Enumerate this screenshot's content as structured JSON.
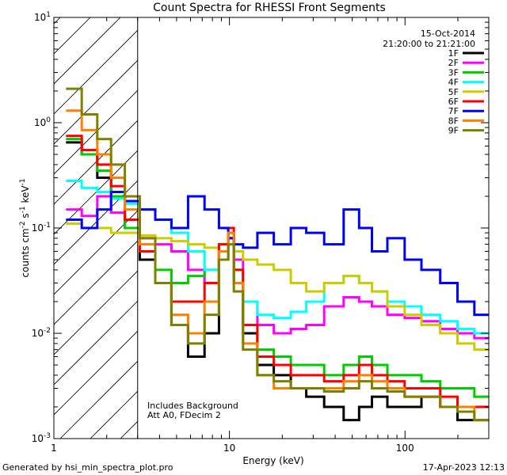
{
  "chart_data": {
    "type": "line",
    "title": "Count Spectra for RHESSI Front Segments",
    "xlabel": "Energy (keV)",
    "ylabel": "counts cm-2 s-1 keV-1",
    "ylabel_parts": {
      "base": "counts cm",
      "e1": "-2",
      "mid1": " s",
      "e2": "-1",
      "mid2": " keV",
      "e3": "-1"
    },
    "xscale": "log",
    "yscale": "log",
    "xlim": [
      1,
      300
    ],
    "ylim": [
      0.001,
      10
    ],
    "x_ticks": [
      {
        "value": 1,
        "label": "1"
      },
      {
        "value": 10,
        "label": "10"
      },
      {
        "value": 100,
        "label": "100"
      }
    ],
    "y_ticks": [
      {
        "value": 0.001,
        "base": "10",
        "exp": "-3"
      },
      {
        "value": 0.01,
        "base": "10",
        "exp": "-2"
      },
      {
        "value": 0.1,
        "base": "10",
        "exp": "-1"
      },
      {
        "value": 1,
        "base": "10",
        "exp": "0"
      },
      {
        "value": 10,
        "base": "10",
        "exp": "1"
      }
    ],
    "shaded_region": {
      "x_from": 1,
      "x_to": 3,
      "pattern": "diagonal-hatch"
    },
    "date": "15-Oct-2014",
    "time_range": "21:20:00 to 21:21:00",
    "annotations": [
      "Includes Background",
      "Att A0, FDecim 2"
    ],
    "footer_left": "Generated by hsi_min_spectra_plot.pro",
    "footer_right": "17-Apr-2023 12:13",
    "series": [
      {
        "name": "1F",
        "color": "#000000",
        "x": [
          1.3,
          1.6,
          1.95,
          2.3,
          2.8,
          3.4,
          4.2,
          5.2,
          6.5,
          8.0,
          9.5,
          10.2,
          11,
          13,
          16,
          20,
          25,
          30,
          40,
          50,
          60,
          70,
          90,
          110,
          140,
          180,
          220,
          280
        ],
        "y": [
          0.65,
          0.5,
          0.3,
          0.2,
          0.1,
          0.05,
          0.03,
          0.012,
          0.006,
          0.01,
          0.05,
          0.08,
          0.03,
          0.01,
          0.005,
          0.004,
          0.003,
          0.0025,
          0.002,
          0.0015,
          0.002,
          0.0025,
          0.002,
          0.002,
          0.0025,
          0.002,
          0.0015,
          0.0015
        ]
      },
      {
        "name": "2F",
        "color": "#ff00ff",
        "x": [
          1.3,
          1.6,
          1.95,
          2.3,
          2.8,
          3.4,
          4.2,
          5.2,
          6.5,
          8.0,
          9.5,
          10.2,
          11,
          13,
          16,
          20,
          25,
          30,
          40,
          50,
          60,
          70,
          90,
          110,
          140,
          180,
          220,
          280
        ],
        "y": [
          0.15,
          0.13,
          0.2,
          0.14,
          0.1,
          0.08,
          0.07,
          0.06,
          0.04,
          0.03,
          0.06,
          0.09,
          0.05,
          0.02,
          0.012,
          0.01,
          0.011,
          0.012,
          0.018,
          0.022,
          0.02,
          0.018,
          0.015,
          0.014,
          0.013,
          0.011,
          0.01,
          0.009
        ]
      },
      {
        "name": "3F",
        "color": "#00cc00",
        "x": [
          1.3,
          1.6,
          1.95,
          2.3,
          2.8,
          3.4,
          4.2,
          5.2,
          6.5,
          8.0,
          9.5,
          10.2,
          11,
          13,
          16,
          20,
          25,
          30,
          40,
          50,
          60,
          70,
          90,
          110,
          140,
          180,
          220,
          280
        ],
        "y": [
          0.7,
          0.5,
          0.35,
          0.2,
          0.1,
          0.06,
          0.04,
          0.03,
          0.035,
          0.04,
          0.07,
          0.09,
          0.04,
          0.012,
          0.007,
          0.006,
          0.005,
          0.005,
          0.004,
          0.005,
          0.006,
          0.005,
          0.004,
          0.004,
          0.0035,
          0.003,
          0.003,
          0.0025
        ]
      },
      {
        "name": "4F",
        "color": "#00ffff",
        "x": [
          1.3,
          1.6,
          1.95,
          2.3,
          2.8,
          3.4,
          4.2,
          5.2,
          6.5,
          8.0,
          9.5,
          10.2,
          11,
          13,
          16,
          20,
          25,
          30,
          40,
          50,
          60,
          70,
          90,
          110,
          140,
          180,
          220,
          280
        ],
        "y": [
          0.28,
          0.24,
          0.22,
          0.19,
          0.17,
          0.15,
          0.12,
          0.09,
          0.06,
          0.04,
          0.05,
          0.07,
          0.04,
          0.02,
          0.015,
          0.014,
          0.016,
          0.02,
          0.03,
          0.035,
          0.03,
          0.025,
          0.02,
          0.018,
          0.015,
          0.013,
          0.011,
          0.01
        ]
      },
      {
        "name": "5F",
        "color": "#cccc00",
        "x": [
          1.3,
          1.6,
          1.95,
          2.3,
          2.8,
          3.4,
          4.2,
          5.2,
          6.5,
          8.0,
          9.5,
          10.2,
          11,
          13,
          16,
          20,
          25,
          30,
          40,
          50,
          60,
          70,
          90,
          110,
          140,
          180,
          220,
          280
        ],
        "y": [
          0.11,
          0.1,
          0.1,
          0.09,
          0.09,
          0.085,
          0.08,
          0.075,
          0.07,
          0.065,
          0.07,
          0.08,
          0.06,
          0.05,
          0.045,
          0.04,
          0.03,
          0.025,
          0.03,
          0.035,
          0.03,
          0.025,
          0.018,
          0.015,
          0.012,
          0.01,
          0.008,
          0.007
        ]
      },
      {
        "name": "6F",
        "color": "#ff0000",
        "x": [
          1.3,
          1.6,
          1.95,
          2.3,
          2.8,
          3.4,
          4.2,
          5.2,
          6.5,
          8.0,
          9.5,
          10.2,
          11,
          13,
          16,
          20,
          25,
          30,
          40,
          50,
          60,
          70,
          90,
          110,
          140,
          180,
          220,
          280
        ],
        "y": [
          0.75,
          0.55,
          0.4,
          0.25,
          0.12,
          0.06,
          0.03,
          0.02,
          0.02,
          0.03,
          0.07,
          0.1,
          0.04,
          0.012,
          0.006,
          0.005,
          0.004,
          0.004,
          0.0035,
          0.004,
          0.005,
          0.004,
          0.0035,
          0.003,
          0.003,
          0.0025,
          0.002,
          0.002
        ]
      },
      {
        "name": "7F",
        "color": "#0000ff",
        "x": [
          1.3,
          1.6,
          1.95,
          2.3,
          2.8,
          3.4,
          4.2,
          5.2,
          6.5,
          8.0,
          9.5,
          10.2,
          11,
          13,
          16,
          20,
          25,
          30,
          40,
          50,
          60,
          70,
          90,
          110,
          140,
          180,
          220,
          280
        ],
        "y": [
          0.12,
          0.1,
          0.15,
          0.22,
          0.18,
          0.15,
          0.12,
          0.1,
          0.2,
          0.15,
          0.1,
          0.08,
          0.07,
          0.065,
          0.09,
          0.07,
          0.1,
          0.09,
          0.07,
          0.15,
          0.1,
          0.06,
          0.08,
          0.05,
          0.04,
          0.03,
          0.02,
          0.015
        ]
      },
      {
        "name": "8F",
        "color": "#ff8000",
        "x": [
          1.3,
          1.6,
          1.95,
          2.3,
          2.8,
          3.4,
          4.2,
          5.2,
          6.5,
          8.0,
          9.5,
          10.2,
          11,
          13,
          16,
          20,
          25,
          30,
          40,
          50,
          60,
          70,
          90,
          110,
          140,
          180,
          220,
          280
        ],
        "y": [
          1.3,
          0.85,
          0.5,
          0.3,
          0.15,
          0.07,
          0.03,
          0.015,
          0.01,
          0.02,
          0.06,
          0.09,
          0.03,
          0.008,
          0.004,
          0.003,
          0.003,
          0.003,
          0.003,
          0.0035,
          0.004,
          0.0035,
          0.003,
          0.0025,
          0.0025,
          0.002,
          0.002,
          0.0015
        ]
      },
      {
        "name": "9F",
        "color": "#808000",
        "x": [
          1.3,
          1.6,
          1.95,
          2.3,
          2.8,
          3.4,
          4.2,
          5.2,
          6.5,
          8.0,
          9.5,
          10.2,
          11,
          13,
          16,
          20,
          25,
          30,
          40,
          50,
          60,
          70,
          90,
          110,
          140,
          180,
          220,
          280
        ],
        "y": [
          2.1,
          1.2,
          0.7,
          0.4,
          0.2,
          0.08,
          0.03,
          0.012,
          0.008,
          0.015,
          0.05,
          0.07,
          0.025,
          0.007,
          0.004,
          0.0035,
          0.003,
          0.003,
          0.0028,
          0.003,
          0.0035,
          0.003,
          0.0028,
          0.0025,
          0.0025,
          0.002,
          0.0018,
          0.0015
        ]
      }
    ]
  }
}
